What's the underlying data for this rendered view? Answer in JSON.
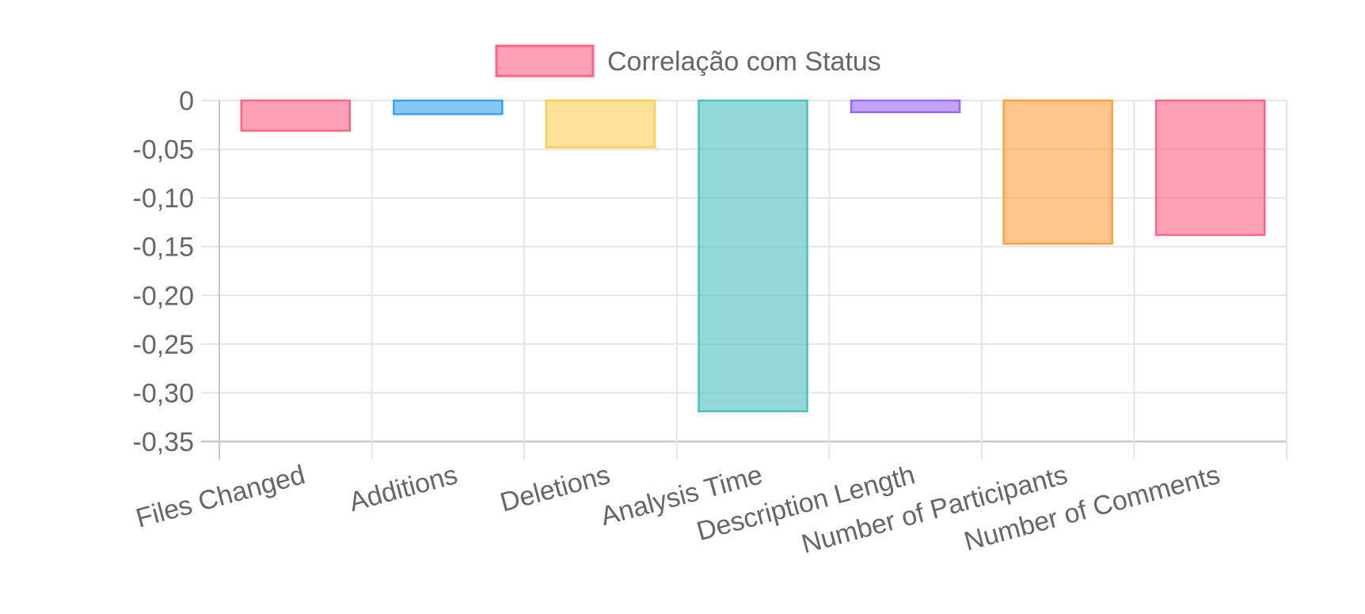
{
  "chart_data": {
    "type": "bar",
    "legend": {
      "position": "top",
      "entries": [
        {
          "label": "Correlação com Status",
          "color": "#ff6384"
        }
      ]
    },
    "categories": [
      "Files Changed",
      "Additions",
      "Deletions",
      "Analysis Time",
      "Description Length",
      "Number of Participants",
      "Number of Comments"
    ],
    "series": [
      {
        "name": "Correlação com Status",
        "values": [
          -0.031,
          -0.014,
          -0.048,
          -0.319,
          -0.012,
          -0.147,
          -0.138
        ]
      }
    ],
    "bar_colors": [
      {
        "fill": "rgba(255, 99, 132, 0.6)",
        "stroke": "#ff6384"
      },
      {
        "fill": "rgba(54, 162, 235, 0.6)",
        "stroke": "#36a2eb"
      },
      {
        "fill": "rgba(255, 206, 86, 0.6)",
        "stroke": "#ffce56"
      },
      {
        "fill": "rgba(75, 192, 192, 0.6)",
        "stroke": "#4bc0c0"
      },
      {
        "fill": "rgba(153, 102, 255, 0.6)",
        "stroke": "#9966ff"
      },
      {
        "fill": "rgba(255, 159, 64, 0.6)",
        "stroke": "#ff9f40"
      },
      {
        "fill": "rgba(255, 99, 132, 0.6)",
        "stroke": "#ff6384"
      }
    ],
    "ylim": [
      -0.35,
      0
    ],
    "yticks": [
      0,
      -0.05,
      -0.1,
      -0.15,
      -0.2,
      -0.25,
      -0.3,
      -0.35
    ],
    "ytick_labels": [
      "0",
      "-0,05",
      "-0,10",
      "-0,15",
      "-0,20",
      "-0,25",
      "-0,30",
      "-0,35"
    ],
    "grid": true,
    "xlabel": "",
    "ylabel": "",
    "title": ""
  }
}
